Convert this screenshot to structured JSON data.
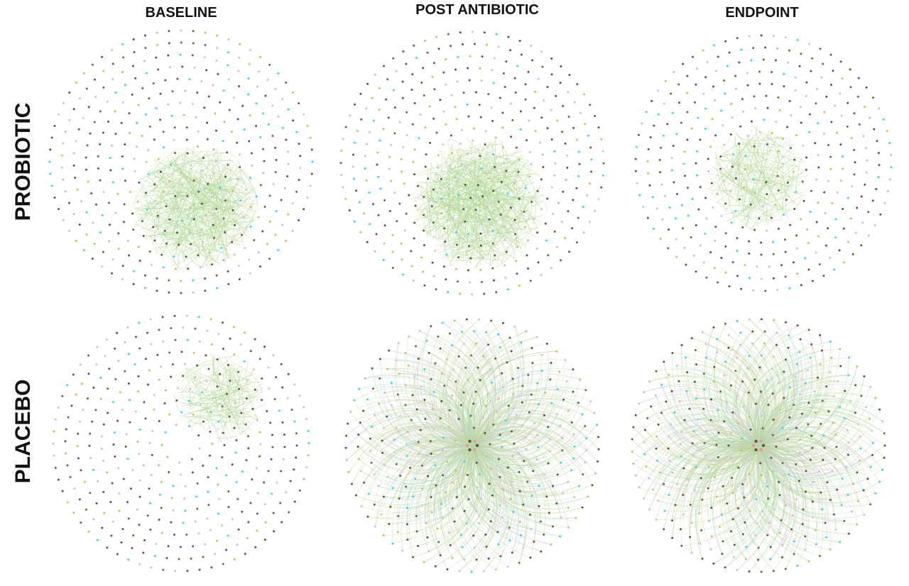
{
  "columns": [
    "BASELINE",
    "POST ANTIBIOTIC",
    "ENDPOINT"
  ],
  "rows": [
    "PROBIOTIC",
    "PLACEBO"
  ]
}
